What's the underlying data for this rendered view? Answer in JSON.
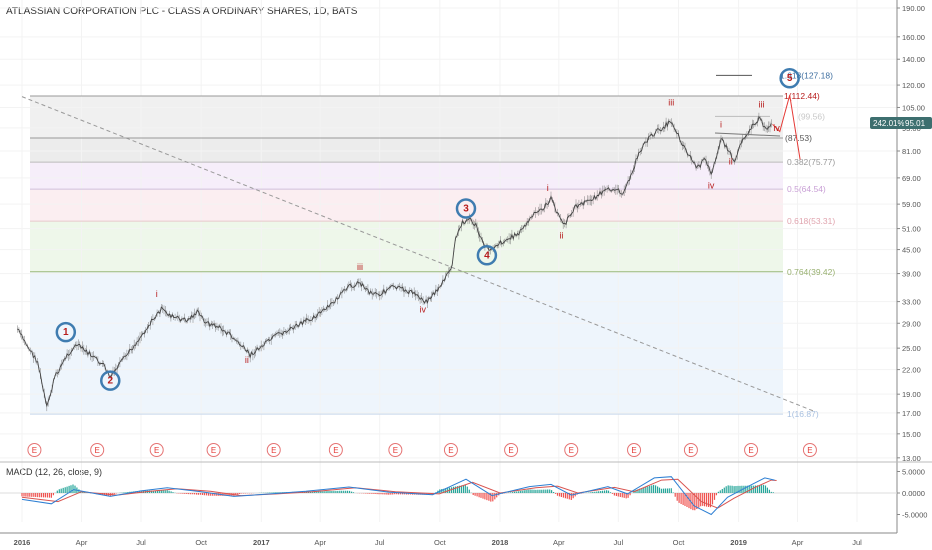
{
  "chart_title": "ATLASSIAN CORPORATION PLC - CLASS A ORDINARY SHARES, 1D, BATS",
  "macd_title": "MACD (12, 26, close, 9)",
  "price_badge": {
    "pct": "242.01%",
    "value": "95.01",
    "color": "#3d6f6f"
  },
  "colors": {
    "wave_label": "#b71c1c",
    "circle": "#3f7cb0",
    "macd_line": "#2d7fd3",
    "signal_line": "#d9534f",
    "hist_pos": "#26a69a",
    "hist_neg": "#ef5350",
    "candles": "#444444"
  },
  "chart_data": {
    "type": "line",
    "x_tick_labels": [
      "2016",
      "Apr",
      "Jul",
      "Oct",
      "2017",
      "Apr",
      "Jul",
      "Oct",
      "2018",
      "Apr",
      "Jul",
      "Oct",
      "2019",
      "Apr",
      "Jul"
    ],
    "x_tick_dates": [
      "2016-01-01",
      "2016-04-01",
      "2016-07-01",
      "2016-10-01",
      "2017-01-01",
      "2017-04-01",
      "2017-07-01",
      "2017-10-01",
      "2018-01-01",
      "2018-04-01",
      "2018-07-01",
      "2018-10-01",
      "2019-01-01",
      "2019-04-01",
      "2019-07-01"
    ],
    "y_scale": "log",
    "y_range": [
      13.3,
      195
    ],
    "y_tick_labels": [
      "190.00",
      "160.00",
      "140.00",
      "120.00",
      "105.00",
      "93.00",
      "81.00",
      "69.00",
      "59.00",
      "51.00",
      "45.00",
      "39.00",
      "33.00",
      "29.00",
      "25.00",
      "22.00",
      "19.00",
      "17.00",
      "15.00",
      "13.00"
    ],
    "y_tick_values": [
      190,
      160,
      140,
      120,
      105,
      93,
      81,
      69,
      59,
      51,
      45,
      39,
      33,
      29,
      25,
      22,
      19,
      17,
      15,
      13
    ],
    "price_series": [
      {
        "d": "2015-12-25",
        "v": 28
      },
      {
        "d": "2016-01-05",
        "v": 26
      },
      {
        "d": "2016-01-25",
        "v": 23
      },
      {
        "d": "2016-02-08",
        "v": 17.5
      },
      {
        "d": "2016-02-20",
        "v": 21
      },
      {
        "d": "2016-03-10",
        "v": 24
      },
      {
        "d": "2016-03-25",
        "v": 25.5
      },
      {
        "d": "2016-04-15",
        "v": 24
      },
      {
        "d": "2016-05-05",
        "v": 22.5
      },
      {
        "d": "2016-05-15",
        "v": 21
      },
      {
        "d": "2016-06-05",
        "v": 23.5
      },
      {
        "d": "2016-06-25",
        "v": 26
      },
      {
        "d": "2016-07-15",
        "v": 29
      },
      {
        "d": "2016-08-01",
        "v": 31.5
      },
      {
        "d": "2016-08-20",
        "v": 30
      },
      {
        "d": "2016-09-10",
        "v": 29.5
      },
      {
        "d": "2016-09-25",
        "v": 31
      },
      {
        "d": "2016-10-10",
        "v": 29
      },
      {
        "d": "2016-10-25",
        "v": 28.5
      },
      {
        "d": "2016-11-15",
        "v": 27
      },
      {
        "d": "2016-12-05",
        "v": 25
      },
      {
        "d": "2016-12-15",
        "v": 24
      },
      {
        "d": "2017-01-05",
        "v": 25.5
      },
      {
        "d": "2017-01-25",
        "v": 27
      },
      {
        "d": "2017-02-15",
        "v": 28
      },
      {
        "d": "2017-03-05",
        "v": 29
      },
      {
        "d": "2017-03-20",
        "v": 30
      },
      {
        "d": "2017-04-10",
        "v": 31.5
      },
      {
        "d": "2017-04-30",
        "v": 34
      },
      {
        "d": "2017-05-15",
        "v": 36
      },
      {
        "d": "2017-06-01",
        "v": 37
      },
      {
        "d": "2017-06-15",
        "v": 35
      },
      {
        "d": "2017-07-01",
        "v": 34.5
      },
      {
        "d": "2017-07-20",
        "v": 36
      },
      {
        "d": "2017-08-05",
        "v": 35.5
      },
      {
        "d": "2017-08-25",
        "v": 34.5
      },
      {
        "d": "2017-09-10",
        "v": 33
      },
      {
        "d": "2017-09-25",
        "v": 35
      },
      {
        "d": "2017-10-10",
        "v": 38
      },
      {
        "d": "2017-10-20",
        "v": 41
      },
      {
        "d": "2017-10-25",
        "v": 48
      },
      {
        "d": "2017-11-05",
        "v": 53
      },
      {
        "d": "2017-11-15",
        "v": 54
      },
      {
        "d": "2017-11-25",
        "v": 52
      },
      {
        "d": "2017-12-05",
        "v": 47
      },
      {
        "d": "2017-12-15",
        "v": 45
      },
      {
        "d": "2017-12-28",
        "v": 46.5
      },
      {
        "d": "2018-01-15",
        "v": 48
      },
      {
        "d": "2018-02-01",
        "v": 50
      },
      {
        "d": "2018-02-20",
        "v": 55
      },
      {
        "d": "2018-03-10",
        "v": 58
      },
      {
        "d": "2018-03-20",
        "v": 61
      },
      {
        "d": "2018-04-01",
        "v": 55
      },
      {
        "d": "2018-04-10",
        "v": 52
      },
      {
        "d": "2018-04-25",
        "v": 58
      },
      {
        "d": "2018-05-15",
        "v": 60
      },
      {
        "d": "2018-06-05",
        "v": 63
      },
      {
        "d": "2018-06-25",
        "v": 65
      },
      {
        "d": "2018-07-10",
        "v": 63
      },
      {
        "d": "2018-07-20",
        "v": 70
      },
      {
        "d": "2018-07-30",
        "v": 78
      },
      {
        "d": "2018-08-10",
        "v": 85
      },
      {
        "d": "2018-08-25",
        "v": 90
      },
      {
        "d": "2018-09-10",
        "v": 94
      },
      {
        "d": "2018-09-20",
        "v": 97
      },
      {
        "d": "2018-10-05",
        "v": 86
      },
      {
        "d": "2018-10-15",
        "v": 80
      },
      {
        "d": "2018-10-30",
        "v": 73
      },
      {
        "d": "2018-11-10",
        "v": 77
      },
      {
        "d": "2018-11-20",
        "v": 71
      },
      {
        "d": "2018-12-05",
        "v": 87
      },
      {
        "d": "2018-12-15",
        "v": 82
      },
      {
        "d": "2018-12-26",
        "v": 76
      },
      {
        "d": "2019-01-05",
        "v": 86
      },
      {
        "d": "2019-01-20",
        "v": 93
      },
      {
        "d": "2019-02-01",
        "v": 98
      },
      {
        "d": "2019-02-12",
        "v": 93
      },
      {
        "d": "2019-02-22",
        "v": 95
      }
    ],
    "trendline": {
      "from": {
        "d": "2016-01-01",
        "v": 112
      },
      "to": {
        "d": "2019-04-25",
        "v": 17.2
      }
    },
    "fib_levels": [
      {
        "label": "1.618(127.18)",
        "v": 127.18
      },
      {
        "label": "1(112.44)",
        "v": 112.44
      },
      {
        "label": "(87.53)",
        "v": 87.53
      },
      {
        "label": "(99.56)",
        "v": 99.56
      },
      {
        "label": "0.382(75.77)",
        "v": 75.77
      },
      {
        "label": "0.5(64.54)",
        "v": 64.54
      },
      {
        "label": "0.618(53.31)",
        "v": 53.31
      },
      {
        "label": "0.764(39.42)",
        "v": 39.42
      },
      {
        "label": "1(16.87)",
        "v": 16.87
      }
    ],
    "fib_bands": [
      {
        "top": 112.44,
        "bottom": 87.53,
        "color": "#f0f0f0"
      },
      {
        "top": 87.53,
        "bottom": 75.77,
        "color": "#ececec"
      },
      {
        "top": 75.77,
        "bottom": 64.54,
        "color": "#f6eefa"
      },
      {
        "top": 64.54,
        "bottom": 53.31,
        "color": "#fbeef1"
      },
      {
        "top": 53.31,
        "bottom": 39.42,
        "color": "#eef7ea"
      },
      {
        "top": 39.42,
        "bottom": 16.87,
        "color": "#eef5fc"
      }
    ],
    "wave_labels": [
      {
        "t": "1",
        "d": "2016-03-08",
        "v": 27.5,
        "circle": true
      },
      {
        "t": "2",
        "d": "2016-05-15",
        "v": 20.6,
        "circle": true
      },
      {
        "t": "i",
        "d": "2016-07-25",
        "v": 34.5
      },
      {
        "t": "ii",
        "d": "2016-12-10",
        "v": 23.3
      },
      {
        "t": "iii",
        "d": "2017-06-01",
        "v": 40.5
      },
      {
        "t": "iv",
        "d": "2017-09-05",
        "v": 31.5
      },
      {
        "t": "3",
        "d": "2017-11-10",
        "v": 57.5,
        "circle": true
      },
      {
        "t": "4",
        "d": "2017-12-12",
        "v": 43.5,
        "circle": true
      },
      {
        "t": "i",
        "d": "2018-03-15",
        "v": 65
      },
      {
        "t": "ii",
        "d": "2018-04-05",
        "v": 49
      },
      {
        "t": "iii",
        "d": "2018-09-20",
        "v": 108
      },
      {
        "t": "iv",
        "d": "2018-11-20",
        "v": 66
      },
      {
        "t": "i",
        "d": "2018-12-05",
        "v": 95
      },
      {
        "t": "ii",
        "d": "2018-12-20",
        "v": 76
      },
      {
        "t": "iii",
        "d": "2019-02-05",
        "v": 107
      },
      {
        "t": "iv",
        "d": "2019-02-28",
        "v": 93
      },
      {
        "t": "5",
        "d": "2019-03-20",
        "v": 125,
        "circle": true
      }
    ],
    "projection": [
      {
        "d": "2019-02-22",
        "v": 95
      },
      {
        "d": "2019-03-05",
        "v": 91
      },
      {
        "d": "2019-03-20",
        "v": 113
      },
      {
        "d": "2019-04-05",
        "v": 77
      }
    ],
    "earnings_label": "E",
    "earnings_dates": [
      "2016-01-20",
      "2016-04-25",
      "2016-07-25",
      "2016-10-20",
      "2017-01-20",
      "2017-04-25",
      "2017-07-25",
      "2017-10-18",
      "2018-01-18",
      "2018-04-20",
      "2018-07-25",
      "2018-10-20",
      "2019-01-20",
      "2019-04-20"
    ],
    "macd": {
      "y_tick_labels": [
        "5.0000",
        "0.0000",
        "-5.0000"
      ],
      "y_tick_values": [
        5,
        0,
        -5
      ],
      "y_range": [
        -7,
        7.5
      ],
      "macd_line": [
        {
          "d": "2016-01-01",
          "v": -1.5
        },
        {
          "d": "2016-02-15",
          "v": -2.5
        },
        {
          "d": "2016-03-20",
          "v": 0.8
        },
        {
          "d": "2016-05-15",
          "v": -0.8
        },
        {
          "d": "2016-07-01",
          "v": 0.5
        },
        {
          "d": "2016-08-10",
          "v": 1.2
        },
        {
          "d": "2016-10-01",
          "v": 0.3
        },
        {
          "d": "2016-11-20",
          "v": -0.8
        },
        {
          "d": "2017-01-15",
          "v": -0.2
        },
        {
          "d": "2017-03-10",
          "v": 0.4
        },
        {
          "d": "2017-05-15",
          "v": 1.4
        },
        {
          "d": "2017-07-15",
          "v": 0.2
        },
        {
          "d": "2017-09-20",
          "v": -0.4
        },
        {
          "d": "2017-11-10",
          "v": 3.2
        },
        {
          "d": "2017-12-20",
          "v": -0.6
        },
        {
          "d": "2018-02-15",
          "v": 1.5
        },
        {
          "d": "2018-03-20",
          "v": 2
        },
        {
          "d": "2018-04-20",
          "v": -0.5
        },
        {
          "d": "2018-06-15",
          "v": 1.5
        },
        {
          "d": "2018-07-15",
          "v": -0.2
        },
        {
          "d": "2018-08-25",
          "v": 3.5
        },
        {
          "d": "2018-09-20",
          "v": 3.8
        },
        {
          "d": "2018-10-25",
          "v": -3
        },
        {
          "d": "2018-11-20",
          "v": -5
        },
        {
          "d": "2018-12-15",
          "v": -1
        },
        {
          "d": "2019-01-15",
          "v": 1.5
        },
        {
          "d": "2019-02-10",
          "v": 3.5
        },
        {
          "d": "2019-02-25",
          "v": 3
        }
      ],
      "signal_line": [
        {
          "d": "2016-01-01",
          "v": -1
        },
        {
          "d": "2016-02-25",
          "v": -2
        },
        {
          "d": "2016-04-01",
          "v": 0.3
        },
        {
          "d": "2016-05-25",
          "v": -0.5
        },
        {
          "d": "2016-07-15",
          "v": 0.4
        },
        {
          "d": "2016-08-25",
          "v": 1
        },
        {
          "d": "2016-10-15",
          "v": 0.4
        },
        {
          "d": "2016-12-01",
          "v": -0.6
        },
        {
          "d": "2017-01-25",
          "v": -0.2
        },
        {
          "d": "2017-03-20",
          "v": 0.3
        },
        {
          "d": "2017-05-25",
          "v": 1.2
        },
        {
          "d": "2017-07-25",
          "v": 0.3
        },
        {
          "d": "2017-09-30",
          "v": -0.2
        },
        {
          "d": "2017-11-20",
          "v": 2.5
        },
        {
          "d": "2018-01-01",
          "v": 0
        },
        {
          "d": "2018-02-25",
          "v": 1.2
        },
        {
          "d": "2018-03-30",
          "v": 1.6
        },
        {
          "d": "2018-04-30",
          "v": 0
        },
        {
          "d": "2018-06-25",
          "v": 1.3
        },
        {
          "d": "2018-07-25",
          "v": 0.3
        },
        {
          "d": "2018-09-05",
          "v": 3
        },
        {
          "d": "2018-09-30",
          "v": 3.2
        },
        {
          "d": "2018-11-05",
          "v": -2
        },
        {
          "d": "2018-11-30",
          "v": -3.5
        },
        {
          "d": "2018-12-25",
          "v": -1.2
        },
        {
          "d": "2019-01-25",
          "v": 1.2
        },
        {
          "d": "2019-02-20",
          "v": 3
        },
        {
          "d": "2019-02-28",
          "v": 2.9
        }
      ]
    }
  }
}
